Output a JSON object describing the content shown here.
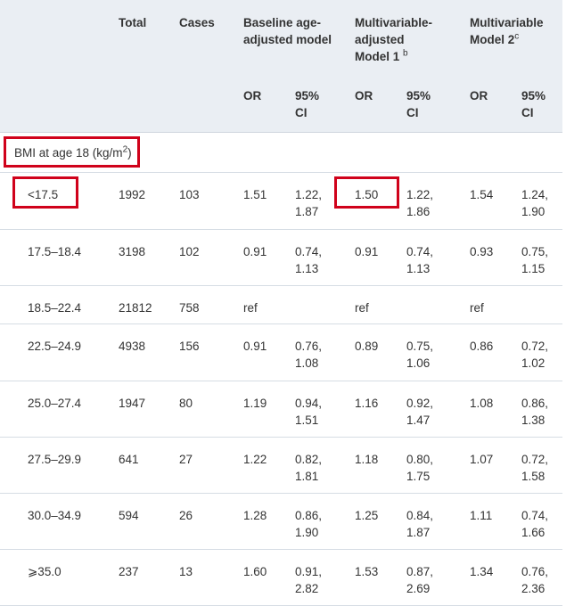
{
  "header": {
    "total": "Total",
    "cases": "Cases",
    "baseline": "Baseline age-adjusted model",
    "mv1_line1": "Multivariable-",
    "mv1_line2": "adjusted",
    "mv1_line3": "Model 1",
    "mv1_sup": "b",
    "mv2": "Multivariable Model 2",
    "mv2_sup": "c",
    "or": "OR",
    "ci": "95% CI"
  },
  "section": {
    "label": "BMI at age 18 (kg/m",
    "sup": "2",
    "close": ")"
  },
  "highlight_color": "#d0021b",
  "rows": [
    {
      "bmi": "<17.5",
      "total": "1992",
      "cases": "103",
      "or1": "1.51",
      "ci1a": "1.22,",
      "ci1b": "1.87",
      "or2": "1.50",
      "ci2a": "1.22,",
      "ci2b": "1.86",
      "or3": "1.54",
      "ci3a": "1.24,",
      "ci3b": "1.90"
    },
    {
      "bmi": "17.5–18.4",
      "total": "3198",
      "cases": "102",
      "or1": "0.91",
      "ci1a": "0.74,",
      "ci1b": "1.13",
      "or2": "0.91",
      "ci2a": "0.74,",
      "ci2b": "1.13",
      "or3": "0.93",
      "ci3a": "0.75,",
      "ci3b": "1.15"
    },
    {
      "bmi": "18.5–22.4",
      "total": "21812",
      "cases": "758",
      "or1": "ref",
      "ci1a": "",
      "ci1b": "",
      "or2": "ref",
      "ci2a": "",
      "ci2b": "",
      "or3": "ref",
      "ci3a": "",
      "ci3b": ""
    },
    {
      "bmi": "22.5–24.9",
      "total": "4938",
      "cases": "156",
      "or1": "0.91",
      "ci1a": "0.76,",
      "ci1b": "1.08",
      "or2": "0.89",
      "ci2a": "0.75,",
      "ci2b": "1.06",
      "or3": "0.86",
      "ci3a": "0.72,",
      "ci3b": "1.02"
    },
    {
      "bmi": "25.0–27.4",
      "total": "1947",
      "cases": "80",
      "or1": "1.19",
      "ci1a": "0.94,",
      "ci1b": "1.51",
      "or2": "1.16",
      "ci2a": "0.92,",
      "ci2b": "1.47",
      "or3": "1.08",
      "ci3a": "0.86,",
      "ci3b": "1.38"
    },
    {
      "bmi": "27.5–29.9",
      "total": "641",
      "cases": "27",
      "or1": "1.22",
      "ci1a": "0.82,",
      "ci1b": "1.81",
      "or2": "1.18",
      "ci2a": "0.80,",
      "ci2b": "1.75",
      "or3": "1.07",
      "ci3a": "0.72,",
      "ci3b": "1.58"
    },
    {
      "bmi": "30.0–34.9",
      "total": "594",
      "cases": "26",
      "or1": "1.28",
      "ci1a": "0.86,",
      "ci1b": "1.90",
      "or2": "1.25",
      "ci2a": "0.84,",
      "ci2b": "1.87",
      "or3": "1.11",
      "ci3a": "0.74,",
      "ci3b": "1.66"
    },
    {
      "bmi": "⩾35.0",
      "total": "237",
      "cases": "13",
      "or1": "1.60",
      "ci1a": "0.91,",
      "ci1b": "2.82",
      "or2": "1.53",
      "ci2a": "0.87,",
      "ci2b": "2.69",
      "or3": "1.34",
      "ci3a": "0.76,",
      "ci3b": "2.36"
    }
  ]
}
